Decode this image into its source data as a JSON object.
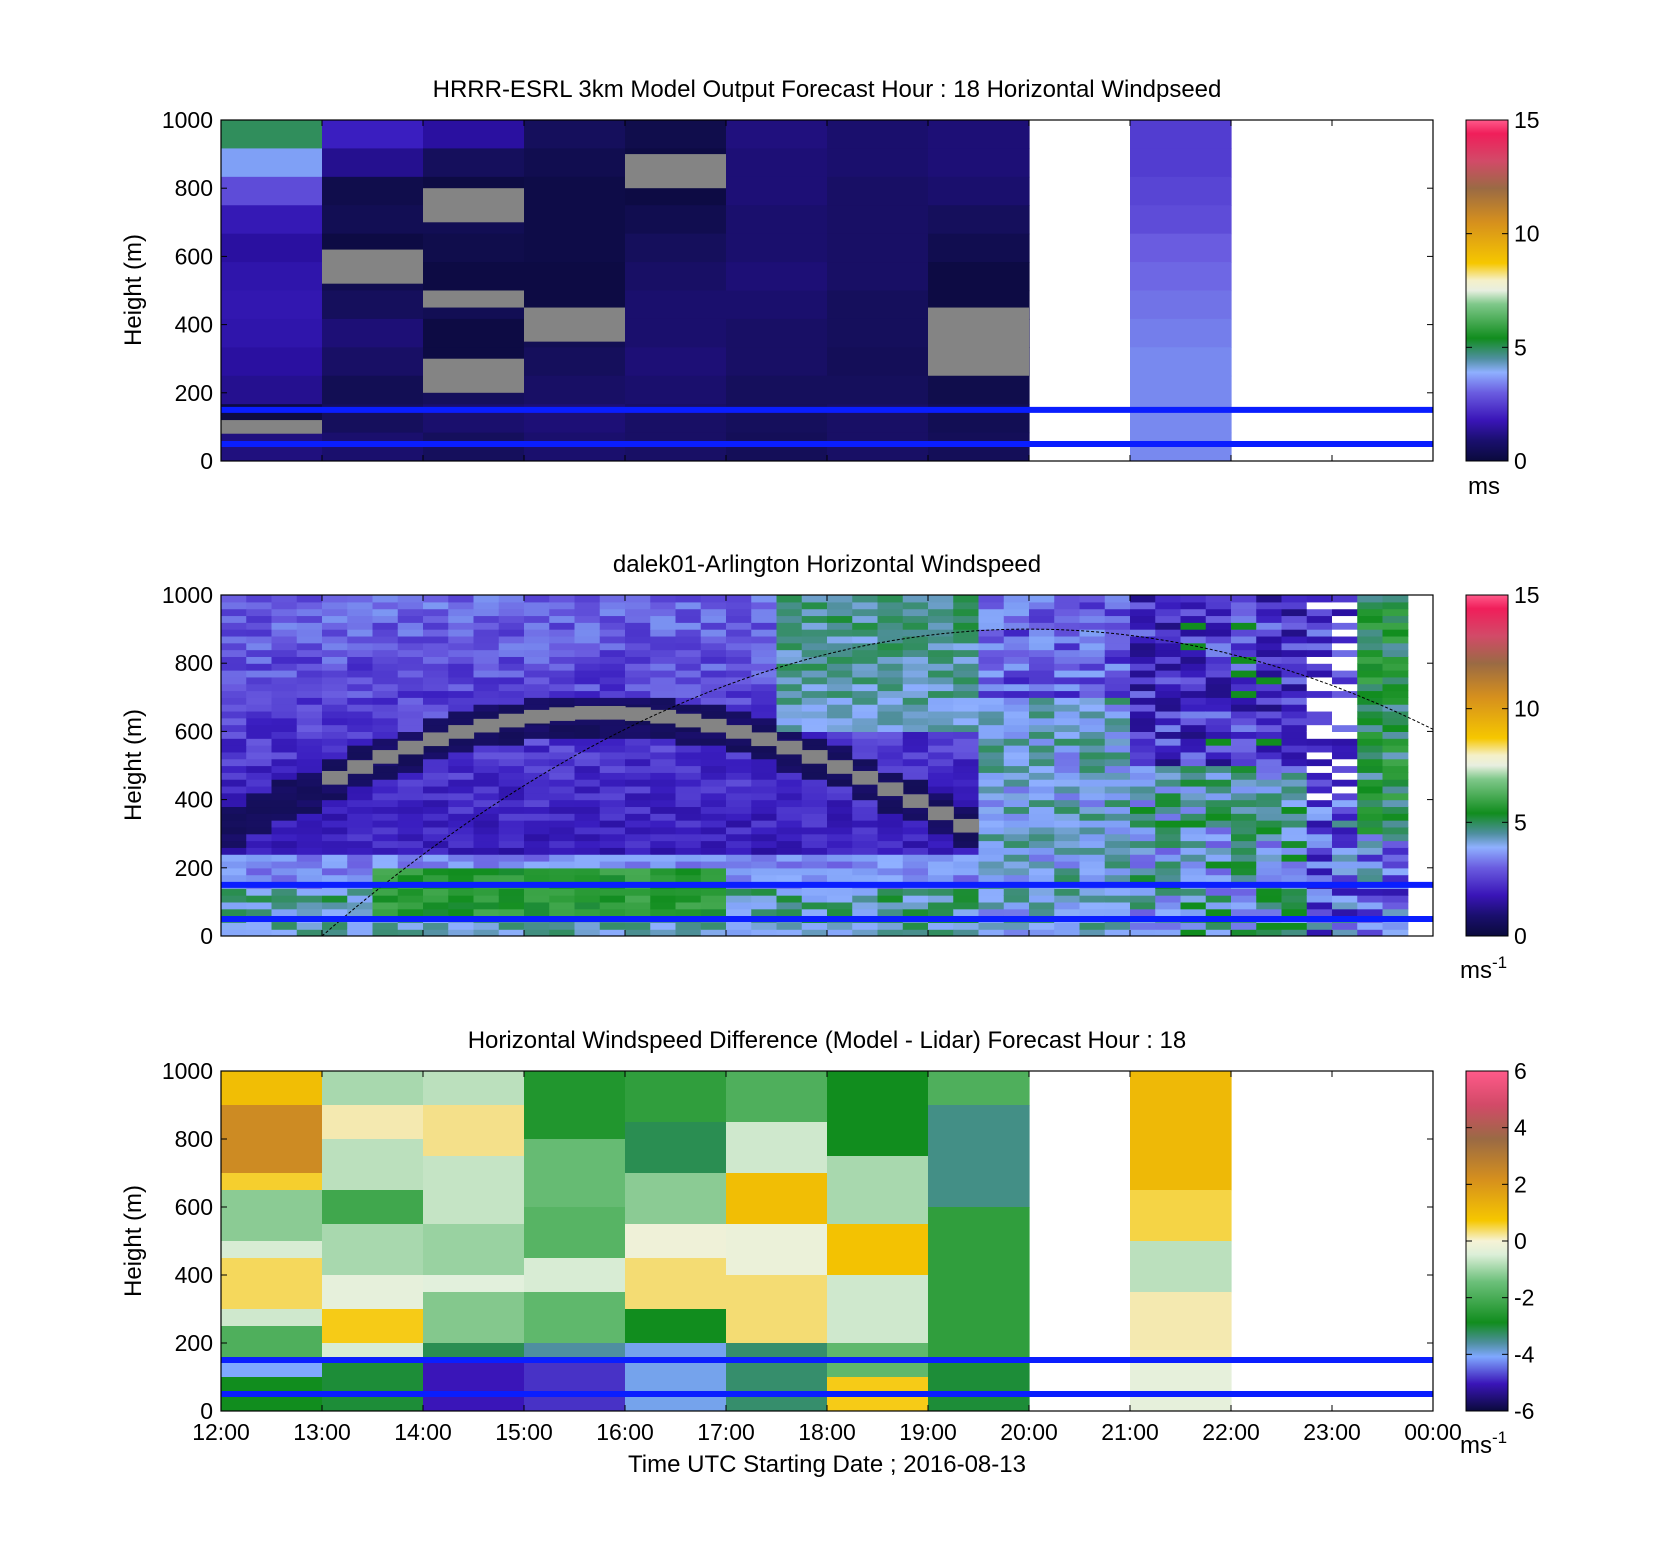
{
  "figure": {
    "xlabel": "Time UTC  Starting Date ; 2016-08-13",
    "time_ticks": [
      "12:00",
      "13:00",
      "14:00",
      "15:00",
      "16:00",
      "17:00",
      "18:00",
      "19:00",
      "20:00",
      "21:00",
      "22:00",
      "23:00",
      "00:00"
    ]
  },
  "chart_data": [
    {
      "type": "heatmap",
      "title": "HRRR-ESRL 3km Model Output   Forecast Hour : 18 Horizontal Windpseed",
      "ylabel": "Height (m)",
      "xlim": [
        "12:00",
        "00:00"
      ],
      "ylim": [
        0,
        1000
      ],
      "yticks": [
        "0",
        "200",
        "400",
        "600",
        "800",
        "1000"
      ],
      "colorbar": {
        "range": [
          0,
          15
        ],
        "ticks": [
          "0",
          "5",
          "10",
          "15"
        ],
        "unit": "ms"
      },
      "reference_lines_m": [
        50,
        150
      ],
      "hour_columns": [
        {
          "start": "12:00",
          "values_top_to_bottom": [
            4.8,
            3.6,
            2.8,
            2.0,
            1.6,
            1.8,
            1.9,
            1.8,
            1.6,
            1.4,
            0.2,
            1.2
          ]
        },
        {
          "start": "13:00",
          "values_top_to_bottom": [
            2.2,
            1.4,
            0.4,
            0.6,
            0.2,
            0.5,
            0.8,
            1.1,
            0.9,
            0.6,
            0.8,
            1.0
          ]
        },
        {
          "start": "14:00",
          "values_top_to_bottom": [
            1.6,
            0.8,
            0.2,
            0.6,
            0.4,
            0.2,
            0.6,
            0.2,
            0.2,
            0.8,
            1.0,
            0.8
          ]
        },
        {
          "start": "15:00",
          "values_top_to_bottom": [
            0.8,
            0.5,
            0.3,
            0.3,
            0.3,
            0.2,
            0.2,
            0.6,
            0.8,
            0.9,
            1.1,
            1.0
          ]
        },
        {
          "start": "16:00",
          "values_top_to_bottom": [
            0.4,
            0.2,
            0.2,
            0.5,
            0.8,
            0.9,
            1.0,
            1.0,
            1.1,
            1.0,
            0.9,
            0.9
          ]
        },
        {
          "start": "17:00",
          "values_top_to_bottom": [
            1.2,
            1.1,
            1.1,
            1.0,
            1.0,
            1.1,
            1.0,
            0.9,
            0.9,
            0.8,
            0.8,
            0.7
          ]
        },
        {
          "start": "18:00",
          "values_top_to_bottom": [
            1.0,
            1.0,
            0.9,
            0.9,
            0.9,
            0.9,
            0.8,
            0.8,
            0.7,
            0.8,
            0.9,
            0.9
          ]
        },
        {
          "start": "19:00",
          "values_top_to_bottom": [
            1.1,
            1.1,
            1.0,
            0.8,
            0.5,
            0.2,
            0.2,
            0.2,
            0.2,
            0.4,
            0.6,
            0.7
          ]
        },
        {
          "start": "21:00",
          "values_top_to_bottom": [
            2.6,
            2.6,
            2.7,
            2.8,
            3.0,
            3.1,
            3.2,
            3.3,
            3.4,
            3.4,
            3.4,
            3.4
          ]
        }
      ]
    },
    {
      "type": "heatmap",
      "title": "dalek01-Arlington  Horizontal Windspeed",
      "ylabel": "Height (m)",
      "xlim": [
        "12:00",
        "00:00"
      ],
      "ylim": [
        0,
        1000
      ],
      "yticks": [
        "0",
        "200",
        "400",
        "600",
        "800",
        "1000"
      ],
      "colorbar": {
        "range": [
          0,
          15
        ],
        "ticks": [
          "0",
          "5",
          "10",
          "15"
        ],
        "unit": "ms",
        "unit_exponent": "-1"
      },
      "reference_lines_m": [
        50,
        150
      ],
      "boundary_curve": {
        "type": "arc",
        "start": [
          "13:00",
          0
        ],
        "peak": [
          "20:00",
          900
        ],
        "end": [
          "00:00",
          570
        ]
      },
      "time_resolution_minutes": 15,
      "height_bins_m": 20
    },
    {
      "type": "heatmap",
      "title": "Horizontal Windspeed Difference (Model - Lidar) Forecast Hour : 18",
      "ylabel": "Height (m)",
      "xlim": [
        "12:00",
        "00:00"
      ],
      "ylim": [
        0,
        1000
      ],
      "yticks": [
        "0",
        "200",
        "400",
        "600",
        "800",
        "1000"
      ],
      "colorbar": {
        "range": [
          -6,
          6
        ],
        "ticks": [
          "-6",
          "-4",
          "-2",
          "0",
          "2",
          "4",
          "6"
        ],
        "unit": "ms",
        "unit_exponent": "-1"
      },
      "reference_lines_m": [
        50,
        150
      ],
      "hour_columns": [
        {
          "start": "12:00",
          "bands_from_top": [
            [
              1000,
              900,
              1.2
            ],
            [
              900,
              700,
              2.4
            ],
            [
              700,
              650,
              0.8
            ],
            [
              650,
              500,
              -1.4
            ],
            [
              500,
              450,
              -0.5
            ],
            [
              450,
              300,
              0.6
            ],
            [
              300,
              250,
              -0.6
            ],
            [
              250,
              150,
              -2.2
            ],
            [
              150,
              100,
              -4.0
            ],
            [
              100,
              0,
              -3.0
            ]
          ]
        },
        {
          "start": "13:00",
          "bands_from_top": [
            [
              1000,
              900,
              -1.0
            ],
            [
              900,
              800,
              0.2
            ],
            [
              800,
              650,
              -0.8
            ],
            [
              650,
              550,
              -2.4
            ],
            [
              550,
              400,
              -1.0
            ],
            [
              400,
              300,
              -0.3
            ],
            [
              300,
              200,
              0.9
            ],
            [
              200,
              150,
              -0.5
            ],
            [
              150,
              0,
              -3.1
            ]
          ]
        },
        {
          "start": "14:00",
          "bands_from_top": [
            [
              1000,
              900,
              -0.8
            ],
            [
              900,
              750,
              0.4
            ],
            [
              750,
              550,
              -0.7
            ],
            [
              550,
              400,
              -1.2
            ],
            [
              400,
              350,
              -0.4
            ],
            [
              350,
              200,
              -1.5
            ],
            [
              200,
              150,
              -3.2
            ],
            [
              150,
              0,
              -5.0
            ]
          ]
        },
        {
          "start": "15:00",
          "bands_from_top": [
            [
              1000,
              800,
              -2.8
            ],
            [
              800,
              600,
              -1.9
            ],
            [
              600,
              450,
              -2.1
            ],
            [
              450,
              350,
              -0.5
            ],
            [
              350,
              200,
              -2.0
            ],
            [
              200,
              150,
              -3.5
            ],
            [
              150,
              0,
              -4.8
            ]
          ]
        },
        {
          "start": "16:00",
          "bands_from_top": [
            [
              1000,
              850,
              -2.6
            ],
            [
              850,
              700,
              -3.2
            ],
            [
              700,
              550,
              -1.4
            ],
            [
              550,
              450,
              -0.1
            ],
            [
              450,
              300,
              0.5
            ],
            [
              300,
              200,
              -3.0
            ],
            [
              200,
              0,
              -3.9
            ]
          ]
        },
        {
          "start": "17:00",
          "bands_from_top": [
            [
              1000,
              850,
              -2.2
            ],
            [
              850,
              700,
              -0.6
            ],
            [
              700,
              550,
              1.2
            ],
            [
              550,
              400,
              -0.2
            ],
            [
              400,
              200,
              0.5
            ],
            [
              200,
              0,
              -3.3
            ]
          ]
        },
        {
          "start": "18:00",
          "bands_from_top": [
            [
              1000,
              750,
              -3.0
            ],
            [
              750,
              550,
              -1.0
            ],
            [
              550,
              400,
              1.1
            ],
            [
              400,
              200,
              -0.6
            ],
            [
              200,
              100,
              -2.0
            ],
            [
              100,
              0,
              0.9
            ]
          ]
        },
        {
          "start": "19:00",
          "bands_from_top": [
            [
              1000,
              900,
              -2.2
            ],
            [
              900,
              600,
              -3.4
            ],
            [
              600,
              150,
              -2.6
            ],
            [
              150,
              0,
              -3.1
            ]
          ]
        },
        {
          "start": "21:00",
          "bands_from_top": [
            [
              1000,
              650,
              1.3
            ],
            [
              650,
              500,
              0.7
            ],
            [
              500,
              350,
              -0.8
            ],
            [
              350,
              150,
              0.2
            ],
            [
              150,
              0,
              -0.3
            ]
          ]
        }
      ]
    }
  ]
}
